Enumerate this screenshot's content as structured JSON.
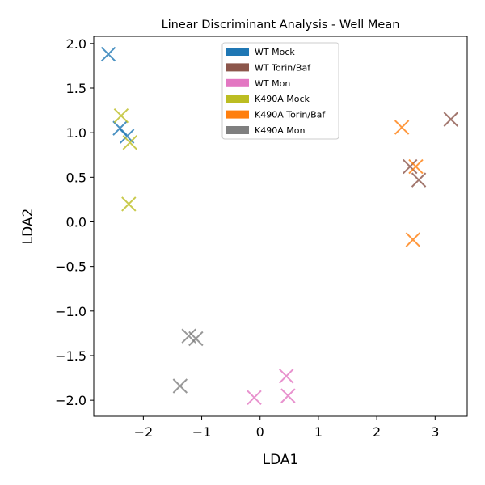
{
  "chart_data": {
    "type": "scatter",
    "title": "Linear Discriminant Analysis - Well Mean",
    "xlabel": "LDA1",
    "ylabel": "LDA2",
    "xlim": [
      -2.85,
      3.55
    ],
    "ylim": [
      -2.18,
      2.08
    ],
    "xticks": [
      -2,
      -1,
      0,
      1,
      2,
      3
    ],
    "xtick_labels": [
      "−2",
      "−1",
      "0",
      "1",
      "2",
      "3"
    ],
    "yticks": [
      -2.0,
      -1.5,
      -1.0,
      -0.5,
      0.0,
      0.5,
      1.0,
      1.5,
      2.0
    ],
    "ytick_labels": [
      "−2.0",
      "−1.5",
      "−1.0",
      "−0.5",
      "0.0",
      "0.5",
      "1.0",
      "1.5",
      "2.0"
    ],
    "grid": false,
    "marker": "x",
    "legend_position": "top-center",
    "series": [
      {
        "name": "WT Mock",
        "color": "#1f77b4",
        "points": [
          [
            -2.6,
            1.88
          ],
          [
            -2.4,
            1.05
          ],
          [
            -2.28,
            0.96
          ]
        ]
      },
      {
        "name": "WT Torin/Baf",
        "color": "#8c564b",
        "points": [
          [
            3.27,
            1.15
          ],
          [
            2.57,
            0.62
          ],
          [
            2.72,
            0.47
          ]
        ]
      },
      {
        "name": "WT Mon",
        "color": "#e377c2",
        "points": [
          [
            0.45,
            -1.73
          ],
          [
            0.48,
            -1.95
          ],
          [
            -0.1,
            -1.97
          ]
        ]
      },
      {
        "name": "K490A Mock",
        "color": "#bcbd22",
        "points": [
          [
            -2.38,
            1.19
          ],
          [
            -2.23,
            0.89
          ],
          [
            -2.25,
            0.2
          ]
        ]
      },
      {
        "name": "K490A Torin/Baf",
        "color": "#ff7f0e",
        "points": [
          [
            2.43,
            1.06
          ],
          [
            2.67,
            0.62
          ],
          [
            2.62,
            -0.2
          ]
        ]
      },
      {
        "name": "K490A Mon",
        "color": "#7f7f7f",
        "points": [
          [
            -1.22,
            -1.28
          ],
          [
            -1.1,
            -1.31
          ],
          [
            -1.37,
            -1.84
          ]
        ]
      }
    ]
  }
}
